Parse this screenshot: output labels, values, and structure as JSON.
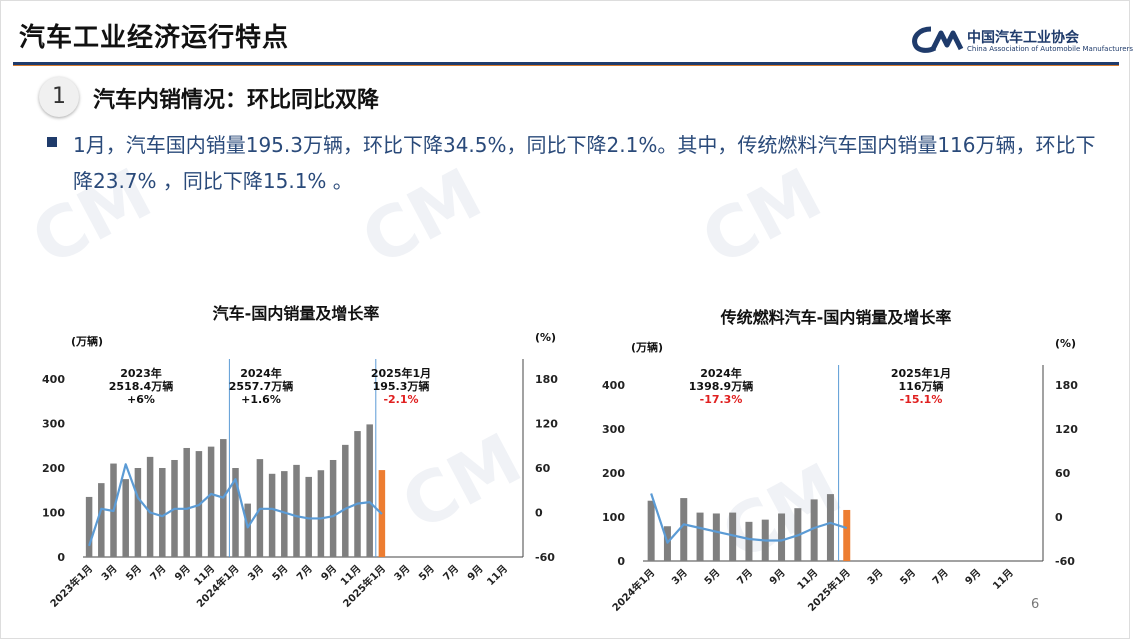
{
  "header": {
    "title": "汽车工业经济运行特点",
    "logo_cn": "中国汽车工业协会",
    "logo_en": "China Association of Automobile Manufacturers"
  },
  "section": {
    "number": "1",
    "title": "汽车内销情况：环比同比双降"
  },
  "paragraph": "1月，汽车国内销量195.3万辆，环比下降34.5%，同比下降2.1%。其中，传统燃料汽车国内销量116万辆，环比下降23.7% ，同比下降15.1% 。",
  "page_number": "6",
  "colors": {
    "bar": "#7f7f7f",
    "highlight_bar": "#ed7d31",
    "line": "#5b9bd5",
    "red": "#e02020",
    "navy": "#1f3b6b"
  },
  "chart_data": [
    {
      "type": "bar",
      "title": "汽车-国内销量及增长率",
      "left_unit": "(万辆)",
      "right_unit": "(%)",
      "ylim": [
        0,
        400
      ],
      "y_ticks": [
        "0",
        "100",
        "200",
        "300",
        "400"
      ],
      "y2lim": [
        -60,
        180
      ],
      "y2_ticks": [
        "-60",
        "0",
        "60",
        "120",
        "180"
      ],
      "x_tick_labels": [
        "2023年1月",
        "3月",
        "5月",
        "7月",
        "9月",
        "11月",
        "2024年1月",
        "3月",
        "5月",
        "7月",
        "9月",
        "11月",
        "2025年1月",
        "3月",
        "5月",
        "7月",
        "9月",
        "11月"
      ],
      "series": [
        {
          "name": "国内销量",
          "kind": "bar",
          "values": [
            135,
            166,
            210,
            175,
            200,
            225,
            200,
            218,
            245,
            238,
            248,
            265,
            200,
            120,
            220,
            187,
            193,
            207,
            180,
            195,
            218,
            252,
            283,
            298,
            195.3
          ]
        },
        {
          "name": "增长率",
          "kind": "line",
          "values": [
            -45,
            5,
            2,
            65,
            20,
            0,
            -5,
            5,
            5,
            10,
            25,
            20,
            45,
            -20,
            5,
            5,
            0,
            -5,
            -8,
            -8,
            -5,
            5,
            12,
            14,
            -2.1
          ]
        }
      ],
      "annotations": [
        {
          "year": "2023年",
          "total": "2518.4万辆",
          "growth": "+6%",
          "negative": false
        },
        {
          "year": "2024年",
          "total": "2557.7万辆",
          "growth": "+1.6%",
          "negative": false
        },
        {
          "year": "2025年1月",
          "total": "195.3万辆",
          "growth": "-2.1%",
          "negative": true
        }
      ]
    },
    {
      "type": "bar",
      "title": "传统燃料汽车-国内销量及增长率",
      "left_unit": "(万辆)",
      "right_unit": "(%)",
      "ylim": [
        0,
        400
      ],
      "y_ticks": [
        "0",
        "100",
        "200",
        "300",
        "400"
      ],
      "y2lim": [
        -60,
        180
      ],
      "y2_ticks": [
        "-60",
        "0",
        "60",
        "120",
        "180"
      ],
      "x_tick_labels": [
        "2024年1月",
        "3月",
        "5月",
        "7月",
        "9月",
        "11月",
        "2025年1月",
        "3月",
        "5月",
        "7月",
        "9月",
        "11月"
      ],
      "series": [
        {
          "name": "国内销量",
          "kind": "bar",
          "values": [
            137,
            79,
            143,
            110,
            108,
            110,
            89,
            94,
            108,
            120,
            140,
            152,
            116
          ]
        },
        {
          "name": "增长率",
          "kind": "line",
          "values": [
            32,
            -35,
            -10,
            -15,
            -20,
            -25,
            -30,
            -32,
            -32,
            -25,
            -15,
            -8,
            -15.1
          ]
        }
      ],
      "annotations": [
        {
          "year": "2024年",
          "total": "1398.9万辆",
          "growth": "-17.3%",
          "negative": true
        },
        {
          "year": "2025年1月",
          "total": "116万辆",
          "growth": "-15.1%",
          "negative": true
        }
      ]
    }
  ]
}
